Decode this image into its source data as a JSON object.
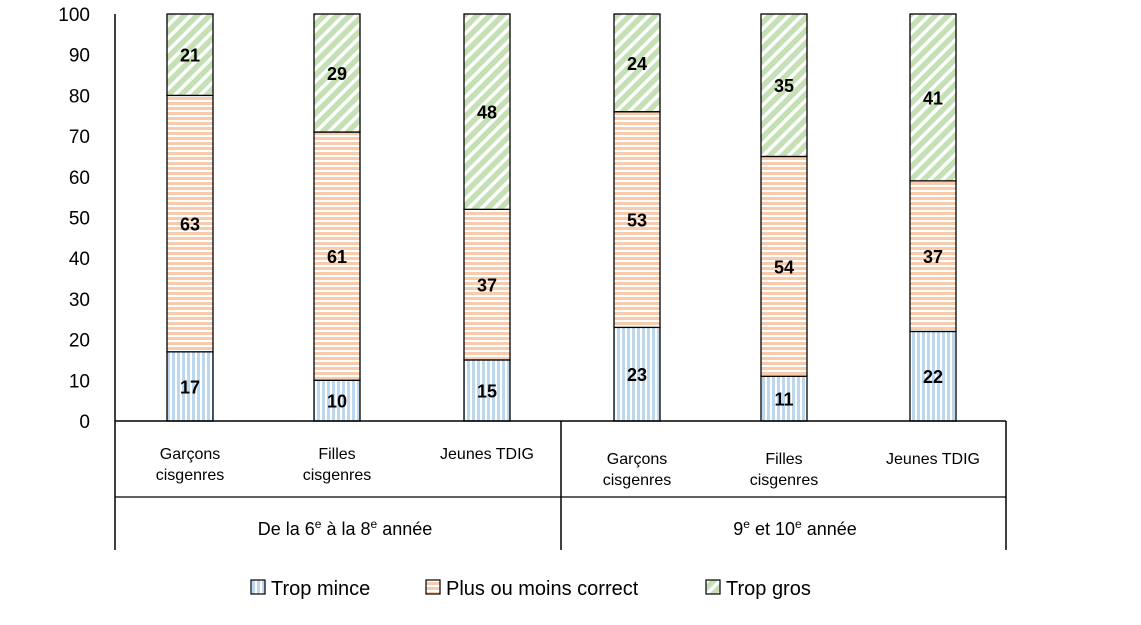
{
  "chart_data": {
    "type": "bar",
    "stacked": true,
    "ylim": [
      0,
      100
    ],
    "yticks": [
      0,
      10,
      20,
      30,
      40,
      50,
      60,
      70,
      80,
      90,
      100
    ],
    "categories": [
      [
        "Garçons",
        "cisgenres"
      ],
      [
        "Filles",
        "cisgenres"
      ],
      [
        "Jeunes TDIG"
      ],
      [
        "Garçons",
        "cisgenres"
      ],
      [
        "Filles",
        "cisgenres"
      ],
      [
        "Jeunes TDIG"
      ]
    ],
    "groups": [
      {
        "label": [
          "De la 6",
          "e",
          " à la 8",
          "e",
          " année"
        ],
        "span": [
          0,
          3
        ]
      },
      {
        "label": [
          "9",
          "e",
          " et 10",
          "e",
          " année"
        ],
        "span": [
          3,
          6
        ]
      }
    ],
    "series": [
      {
        "name": "Trop mince",
        "values": [
          17,
          10,
          15,
          23,
          11,
          22
        ],
        "color": "#bdd7ee",
        "pattern": "vertical"
      },
      {
        "name": "Plus ou moins correct",
        "values": [
          63,
          61,
          37,
          53,
          54,
          37
        ],
        "color": "#f8cbad",
        "pattern": "horizontal"
      },
      {
        "name": "Trop gros",
        "values": [
          21,
          29,
          48,
          24,
          35,
          41
        ],
        "color": "#c5e0b4",
        "pattern": "diagonal"
      }
    ],
    "legend_position": "bottom",
    "grid": false
  }
}
